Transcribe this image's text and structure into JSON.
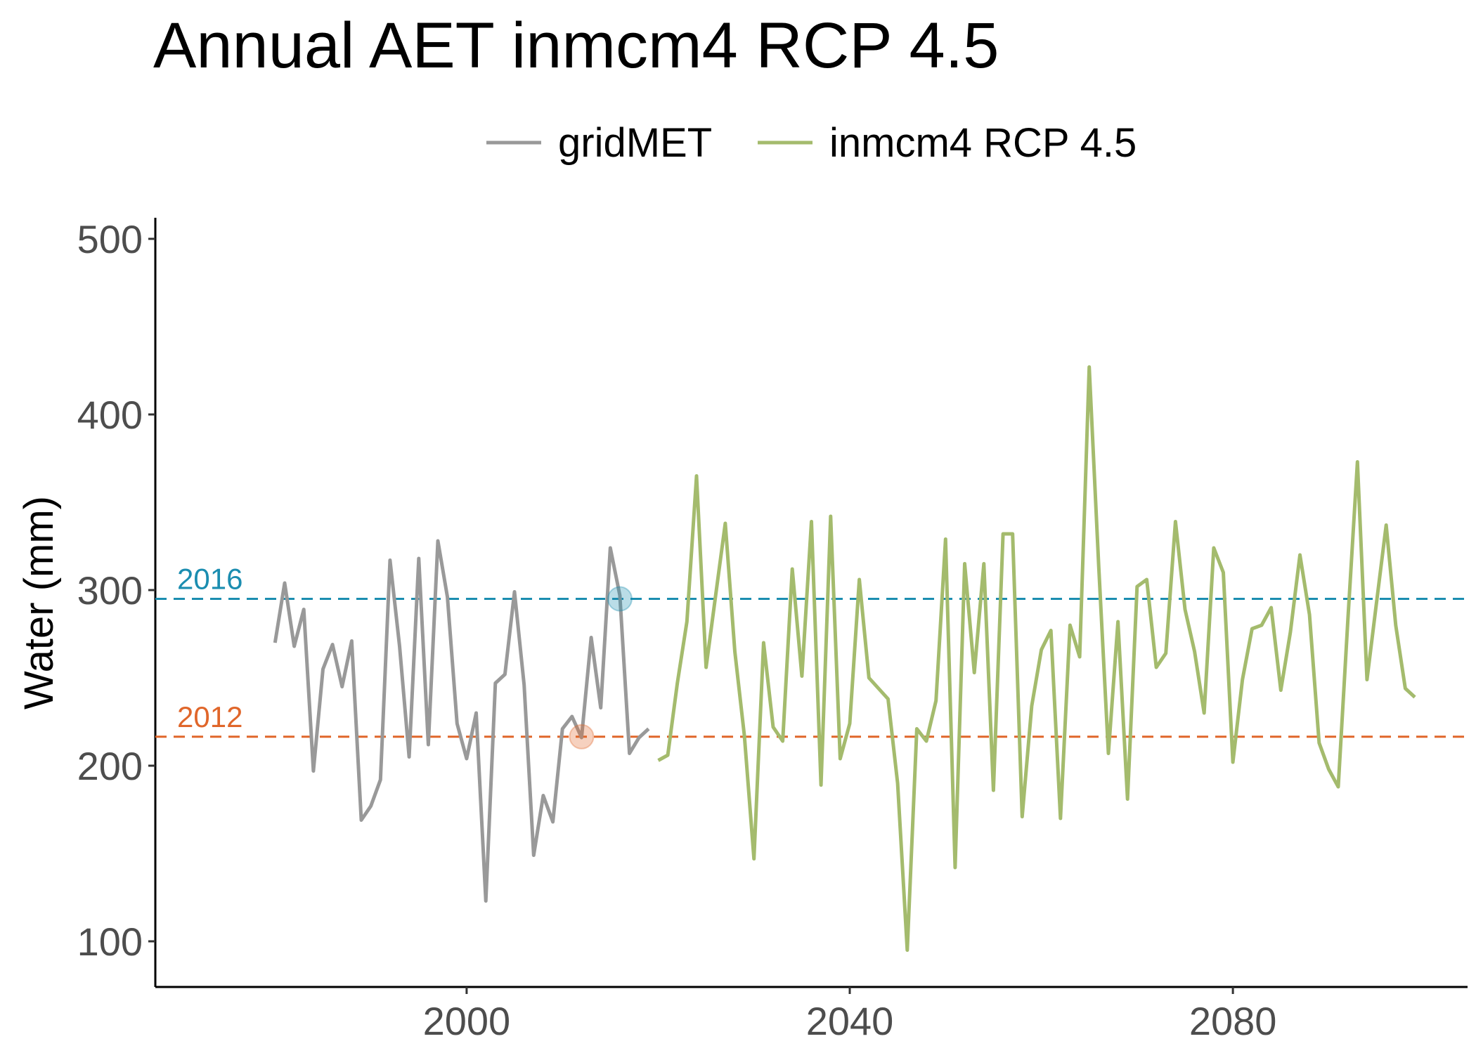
{
  "chart_data": {
    "type": "line",
    "title": "Annual AET inmcm4 RCP 4.5",
    "xlabel": "",
    "ylabel": "Water (mm)",
    "xlim": [
      1967.5,
      2104.5
    ],
    "ylim": [
      74,
      512
    ],
    "x_ticks": [
      2000,
      2040,
      2080
    ],
    "y_ticks": [
      100,
      200,
      300,
      400,
      500
    ],
    "grid": false,
    "legend_position": "top",
    "series": [
      {
        "name": "gridMET",
        "color": "#999999",
        "x": [
          1980,
          1981,
          1982,
          1983,
          1984,
          1985,
          1986,
          1987,
          1988,
          1989,
          1990,
          1991,
          1992,
          1993,
          1994,
          1995,
          1996,
          1997,
          1998,
          1999,
          2000,
          2001,
          2002,
          2003,
          2004,
          2005,
          2006,
          2007,
          2008,
          2009,
          2010,
          2011,
          2012,
          2013,
          2014,
          2015,
          2016,
          2017,
          2018,
          2019
        ],
        "values": [
          270,
          304,
          268,
          289,
          197,
          255,
          269,
          245,
          271,
          169,
          177,
          192,
          317,
          268,
          205,
          318,
          212,
          328,
          296,
          224,
          204,
          230,
          123,
          247,
          252,
          299,
          246,
          149,
          183,
          168,
          221,
          228,
          216,
          273,
          233,
          324,
          297,
          207,
          216,
          221
        ]
      },
      {
        "name": "inmcm4 RCP 4.5",
        "color": "#a4bb6d",
        "x": [
          2020,
          2021,
          2022,
          2023,
          2024,
          2025,
          2026,
          2027,
          2028,
          2029,
          2030,
          2031,
          2032,
          2033,
          2034,
          2035,
          2036,
          2037,
          2038,
          2039,
          2040,
          2041,
          2042,
          2043,
          2044,
          2045,
          2046,
          2047,
          2048,
          2049,
          2050,
          2051,
          2052,
          2053,
          2054,
          2055,
          2056,
          2057,
          2058,
          2059,
          2060,
          2061,
          2062,
          2063,
          2064,
          2065,
          2066,
          2067,
          2068,
          2069,
          2070,
          2071,
          2072,
          2073,
          2074,
          2075,
          2076,
          2077,
          2078,
          2079,
          2080,
          2081,
          2082,
          2083,
          2084,
          2085,
          2086,
          2087,
          2088,
          2089,
          2090,
          2091,
          2092,
          2093,
          2094,
          2095,
          2096,
          2097,
          2098,
          2099
        ],
        "values": [
          203,
          206,
          247,
          282,
          365,
          256,
          297,
          338,
          265,
          217,
          147,
          270,
          222,
          214,
          312,
          251,
          339,
          189,
          342,
          204,
          224,
          306,
          250,
          244,
          238,
          190,
          95,
          221,
          214,
          237,
          329,
          142,
          315,
          253,
          315,
          186,
          332,
          332,
          171,
          234,
          266,
          277,
          170,
          280,
          262,
          427,
          313,
          207,
          282,
          181,
          302,
          306,
          256,
          264,
          339,
          289,
          265,
          230,
          324,
          310,
          202,
          249,
          278,
          280,
          290,
          243,
          276,
          320,
          286,
          213,
          198,
          188,
          283,
          373,
          249,
          293,
          337,
          280,
          244,
          239
        ]
      }
    ],
    "reference_lines": [
      {
        "label": "2016",
        "y": 295,
        "color": "#1b8db0",
        "marker_x": 2016
      },
      {
        "label": "2012",
        "y": 216.5,
        "color": "#e0662a",
        "marker_x": 2012
      }
    ]
  }
}
